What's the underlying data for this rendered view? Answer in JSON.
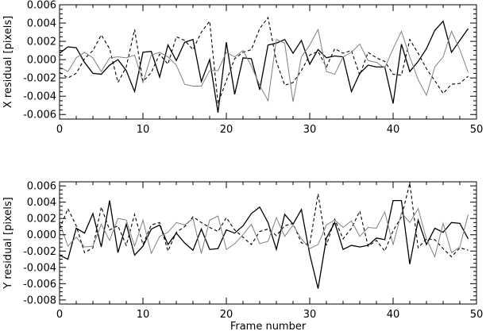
{
  "chart_data": [
    {
      "type": "line",
      "xlabel": "",
      "ylabel": "X residual [pixels]",
      "xlim": [
        0,
        50
      ],
      "ylim": [
        -0.0065,
        0.006
      ],
      "x_ticks": [
        0,
        10,
        20,
        30,
        40,
        50
      ],
      "y_ticks": [
        -0.006,
        -0.004,
        -0.002,
        0.0,
        0.002,
        0.004,
        0.006
      ],
      "x_tick_labels": [
        "0",
        "10",
        "20",
        "30",
        "40",
        "50"
      ],
      "y_tick_labels": [
        "-0.006",
        "-0.004",
        "-0.002",
        "0.000",
        "0.002",
        "0.004",
        "0.006"
      ],
      "grid": false,
      "series": [
        {
          "style": "solid-black",
          "color": "#000000",
          "values": [
            0.0007,
            0.0014,
            0.0013,
            -0.0003,
            -0.0015,
            -0.0016,
            -0.0006,
            0.0,
            -0.0012,
            -0.0035,
            0.0008,
            0.0009,
            -0.0019,
            0.0016,
            -0.0001,
            0.0019,
            0.0022,
            -0.0024,
            0.0,
            -0.0058,
            0.0019,
            -0.0038,
            0.0002,
            0.0001,
            -0.0033,
            0.0016,
            0.0018,
            0.0022,
            0.0007,
            0.0021,
            -0.0005,
            0.0011,
            0.0002,
            0.0004,
            0.0003,
            -0.0035,
            -0.0015,
            -0.0006,
            -0.0008,
            -0.0008,
            -0.0048,
            0.0017,
            -0.0013,
            -0.0002,
            0.0012,
            0.0032,
            0.0042,
            0.0008,
            0.0021,
            0.0034
          ]
        },
        {
          "style": "dashed-black",
          "color": "#000000",
          "values": [
            -0.0014,
            -0.002,
            -0.0015,
            0.0001,
            0.001,
            0.0027,
            0.0012,
            -0.0025,
            -0.0008,
            0.0033,
            -0.0024,
            -0.0014,
            0.0006,
            -0.0005,
            0.0025,
            0.0021,
            0.0011,
            0.003,
            0.0042,
            -0.0048,
            -0.0023,
            0.0001,
            0.0008,
            0.0011,
            0.0034,
            0.0046,
            -0.0002,
            -0.0028,
            -0.0025,
            -0.0012,
            0.0005,
            0.0009,
            -0.0008,
            0.0012,
            0.0007,
            0.001,
            -0.0017,
            0.0008,
            0.0002,
            -0.0002,
            -0.0016,
            -0.0017,
            0.0022,
            0.0007,
            -0.001,
            -0.0023,
            -0.0037,
            -0.0027,
            -0.0026,
            -0.0018
          ]
        },
        {
          "style": "solid-gray",
          "color": "#808080",
          "values": [
            -0.0008,
            -0.0013,
            0.0002,
            0.0008,
            0.0002,
            -0.0013,
            0.0002,
            0.0003,
            0.0002,
            0.0005,
            -0.0025,
            0.0005,
            0.0008,
            0.0003,
            -0.0006,
            -0.0027,
            -0.0029,
            -0.0029,
            -0.0012,
            -0.0012,
            0.0008,
            0.0003,
            0.001,
            -0.0007,
            -0.0028,
            -0.0045,
            0.0022,
            0.0018,
            -0.0046,
            0.0003,
            0.0016,
            0.0033,
            -0.0013,
            -0.0016,
            0.0003,
            0.0008,
            0.0017,
            -0.0001,
            -0.0003,
            -0.0009,
            0.0012,
            0.0031,
            0.0003,
            -0.0022,
            -0.0039,
            -0.0008,
            0.0003,
            0.0031,
            0.0011,
            -0.0014
          ]
        }
      ]
    },
    {
      "type": "line",
      "xlabel": "Frame number",
      "ylabel": "Y residual [pixels]",
      "xlim": [
        0,
        50
      ],
      "ylim": [
        -0.0085,
        0.0065
      ],
      "x_ticks": [
        0,
        10,
        20,
        30,
        40,
        50
      ],
      "y_ticks": [
        -0.008,
        -0.006,
        -0.004,
        -0.002,
        0.0,
        0.002,
        0.004,
        0.006
      ],
      "x_tick_labels": [
        "0",
        "10",
        "20",
        "30",
        "40",
        "50"
      ],
      "y_tick_labels": [
        "-0.008",
        "-0.006",
        "-0.004",
        "-0.002",
        "0.000",
        "0.002",
        "0.004",
        "0.006"
      ],
      "grid": false,
      "series": [
        {
          "style": "solid-black",
          "color": "#000000",
          "values": [
            -0.0025,
            -0.003,
            0.0008,
            0.0002,
            0.0026,
            -0.0015,
            0.0042,
            -0.0022,
            0.0013,
            -0.0025,
            -0.0014,
            0.0007,
            0.0012,
            -0.0012,
            0.0002,
            -0.001,
            -0.0019,
            0.0007,
            -0.0018,
            -0.0017,
            0.0006,
            0.0002,
            0.0011,
            0.0026,
            0.0034,
            0.0015,
            -0.0018,
            0.0025,
            0.0013,
            0.0031,
            -0.0024,
            -0.0066,
            -0.0004,
            0.0015,
            -0.0018,
            -0.0013,
            -0.0015,
            -0.0013,
            -0.0004,
            -0.0006,
            0.0042,
            0.0042,
            -0.0036,
            0.0018,
            -0.0012,
            0.0008,
            0.0003,
            0.0015,
            0.0014,
            -0.0005
          ]
        },
        {
          "style": "dashed-black",
          "color": "#000000",
          "values": [
            0.0007,
            0.0032,
            0.0011,
            -0.0022,
            -0.0016,
            0.0034,
            0.0006,
            0.0011,
            -0.0013,
            0.0025,
            -0.0012,
            0.0012,
            0.0015,
            -0.002,
            0.0003,
            0.001,
            0.0022,
            0.0015,
            0.0009,
            0.0004,
            0.0021,
            0.0006,
            -0.0003,
            -0.0012,
            0.0004,
            0.0007,
            -0.0001,
            0.0011,
            0.0014,
            -0.001,
            -0.0012,
            0.005,
            -0.0013,
            0.0019,
            -0.0005,
            0.0008,
            0.0029,
            -0.0014,
            -0.0007,
            -0.002,
            0.0005,
            0.0022,
            0.0063,
            -0.0016,
            -0.0005,
            -0.0006,
            -0.0017,
            -0.0027,
            -0.0016,
            -0.0019
          ]
        },
        {
          "style": "solid-gray",
          "color": "#808080",
          "values": [
            0.0015,
            -0.0014,
            -0.0003,
            -0.0015,
            -0.0014,
            0.0013,
            -0.0007,
            0.002,
            0.0018,
            -0.0014,
            0.0018,
            -0.0023,
            -0.0002,
            0.0003,
            0.0015,
            0.0012,
            0.002,
            -0.0023,
            0.0018,
            0.0023,
            -0.0018,
            -0.0011,
            0.0,
            0.0013,
            -0.0011,
            -0.0008,
            0.0021,
            -0.0002,
            0.0012,
            -0.0005,
            -0.0017,
            -0.0012,
            0.0012,
            0.0018,
            0.0009,
            0.0017,
            -0.0002,
            0.0009,
            0.0008,
            0.0028,
            -0.0012,
            0.0027,
            0.0015,
            0.0032,
            -0.0005,
            -0.0027,
            0.0014,
            -0.0022,
            -0.0015,
            0.0025
          ]
        }
      ]
    }
  ]
}
